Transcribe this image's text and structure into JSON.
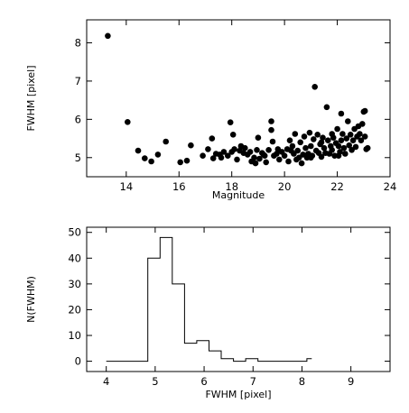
{
  "chart_data": [
    {
      "type": "scatter",
      "title": "",
      "xlabel": "Magnitude",
      "ylabel": "FWHM [pixel]",
      "xlim": [
        12.5,
        24
      ],
      "ylim": [
        4.5,
        8.6
      ],
      "xticks": [
        14,
        16,
        18,
        20,
        22,
        24
      ],
      "yticks": [
        5,
        6,
        7,
        8
      ],
      "xtick_labels": [
        "14",
        "16",
        "18",
        "20",
        "22",
        "24"
      ],
      "ytick_labels": [
        "5",
        "6",
        "7",
        "8"
      ],
      "grid": false,
      "marker": "filled-circle",
      "color": "#000000",
      "points": [
        [
          13.3,
          8.18
        ],
        [
          14.05,
          5.93
        ],
        [
          14.45,
          5.18
        ],
        [
          14.7,
          4.98
        ],
        [
          14.95,
          4.9
        ],
        [
          15.2,
          5.08
        ],
        [
          15.5,
          5.42
        ],
        [
          16.05,
          4.88
        ],
        [
          16.3,
          4.92
        ],
        [
          16.45,
          5.32
        ],
        [
          16.9,
          5.05
        ],
        [
          17.1,
          5.22
        ],
        [
          17.25,
          5.5
        ],
        [
          17.3,
          4.98
        ],
        [
          17.4,
          5.1
        ],
        [
          17.55,
          5.08
        ],
        [
          17.6,
          5.0
        ],
        [
          17.7,
          5.15
        ],
        [
          17.85,
          5.05
        ],
        [
          17.95,
          5.92
        ],
        [
          18.0,
          5.15
        ],
        [
          18.05,
          5.6
        ],
        [
          18.1,
          5.22
        ],
        [
          18.2,
          4.95
        ],
        [
          18.3,
          5.18
        ],
        [
          18.45,
          5.12
        ],
        [
          18.5,
          5.25
        ],
        [
          18.6,
          5.08
        ],
        [
          18.7,
          5.15
        ],
        [
          18.75,
          4.9
        ],
        [
          18.85,
          5.0
        ],
        [
          18.95,
          5.2
        ],
        [
          19.0,
          5.52
        ],
        [
          19.05,
          4.97
        ],
        [
          19.15,
          5.12
        ],
        [
          19.25,
          5.05
        ],
        [
          19.3,
          4.88
        ],
        [
          19.4,
          5.2
        ],
        [
          19.5,
          5.95
        ],
        [
          19.5,
          5.72
        ],
        [
          19.55,
          5.42
        ],
        [
          19.6,
          5.05
        ],
        [
          19.7,
          5.1
        ],
        [
          19.8,
          4.95
        ],
        [
          19.9,
          5.15
        ],
        [
          20.0,
          5.05
        ],
        [
          20.1,
          5.22
        ],
        [
          20.15,
          4.9
        ],
        [
          20.2,
          5.45
        ],
        [
          20.3,
          5.3
        ],
        [
          20.35,
          5.1
        ],
        [
          20.4,
          5.62
        ],
        [
          20.45,
          4.95
        ],
        [
          20.5,
          5.18
        ],
        [
          20.6,
          5.4
        ],
        [
          20.65,
          4.85
        ],
        [
          20.7,
          5.08
        ],
        [
          20.75,
          5.55
        ],
        [
          20.8,
          5.25
        ],
        [
          20.85,
          5.0
        ],
        [
          20.9,
          5.1
        ],
        [
          20.95,
          5.65
        ],
        [
          21.0,
          5.3
        ],
        [
          21.05,
          5.05
        ],
        [
          21.1,
          5.48
        ],
        [
          21.15,
          6.85
        ],
        [
          21.2,
          5.18
        ],
        [
          21.25,
          5.6
        ],
        [
          21.3,
          5.12
        ],
        [
          21.35,
          5.35
        ],
        [
          21.4,
          5.02
        ],
        [
          21.45,
          5.52
        ],
        [
          21.5,
          5.25
        ],
        [
          21.55,
          5.12
        ],
        [
          21.6,
          6.32
        ],
        [
          21.65,
          5.45
        ],
        [
          21.7,
          5.1
        ],
        [
          21.75,
          5.3
        ],
        [
          21.8,
          5.2
        ],
        [
          21.85,
          5.52
        ],
        [
          21.9,
          5.05
        ],
        [
          21.95,
          5.38
        ],
        [
          22.0,
          5.75
        ],
        [
          22.05,
          5.3
        ],
        [
          22.1,
          5.15
        ],
        [
          22.15,
          5.45
        ],
        [
          22.2,
          5.62
        ],
        [
          22.25,
          5.25
        ],
        [
          22.3,
          5.1
        ],
        [
          22.35,
          5.5
        ],
        [
          22.4,
          5.95
        ],
        [
          22.45,
          5.32
        ],
        [
          22.5,
          5.6
        ],
        [
          22.55,
          5.2
        ],
        [
          22.6,
          5.45
        ],
        [
          22.65,
          5.75
        ],
        [
          22.7,
          5.28
        ],
        [
          22.75,
          5.55
        ],
        [
          22.8,
          5.82
        ],
        [
          22.85,
          5.62
        ],
        [
          22.9,
          5.45
        ],
        [
          22.95,
          5.88
        ],
        [
          23.0,
          6.2
        ],
        [
          23.05,
          6.22
        ],
        [
          23.05,
          5.55
        ],
        [
          23.1,
          5.22
        ],
        [
          23.15,
          5.25
        ],
        [
          22.15,
          6.15
        ],
        [
          21.0,
          5.0
        ],
        [
          20.55,
          5.0
        ],
        [
          19.75,
          5.22
        ],
        [
          19.2,
          5.08
        ],
        [
          18.9,
          4.85
        ],
        [
          18.35,
          5.3
        ],
        [
          21.4,
          5.4
        ],
        [
          22.05,
          5.05
        ],
        [
          20.25,
          5.18
        ],
        [
          21.8,
          5.62
        ]
      ]
    },
    {
      "type": "histogram",
      "title": "",
      "xlabel": "FWHM [pixel]",
      "ylabel": "N(FWHM)",
      "xlim": [
        3.6,
        9.8
      ],
      "ylim": [
        -4,
        52
      ],
      "xticks": [
        4,
        5,
        6,
        7,
        8,
        9
      ],
      "yticks": [
        0,
        10,
        20,
        30,
        40,
        50
      ],
      "xtick_labels": [
        "4",
        "5",
        "6",
        "7",
        "8",
        "9"
      ],
      "ytick_labels": [
        "0",
        "10",
        "20",
        "30",
        "40",
        "50"
      ],
      "grid": false,
      "bin_edges": [
        4.0,
        4.85,
        5.1,
        5.35,
        5.6,
        5.85,
        6.1,
        6.35,
        6.6,
        6.85,
        7.1,
        7.35,
        7.6,
        7.85,
        8.1,
        8.2
      ],
      "counts": [
        0,
        40,
        48,
        30,
        7,
        8,
        4,
        1,
        0,
        1,
        0,
        0,
        0,
        0,
        1
      ],
      "color": "#000000"
    }
  ]
}
